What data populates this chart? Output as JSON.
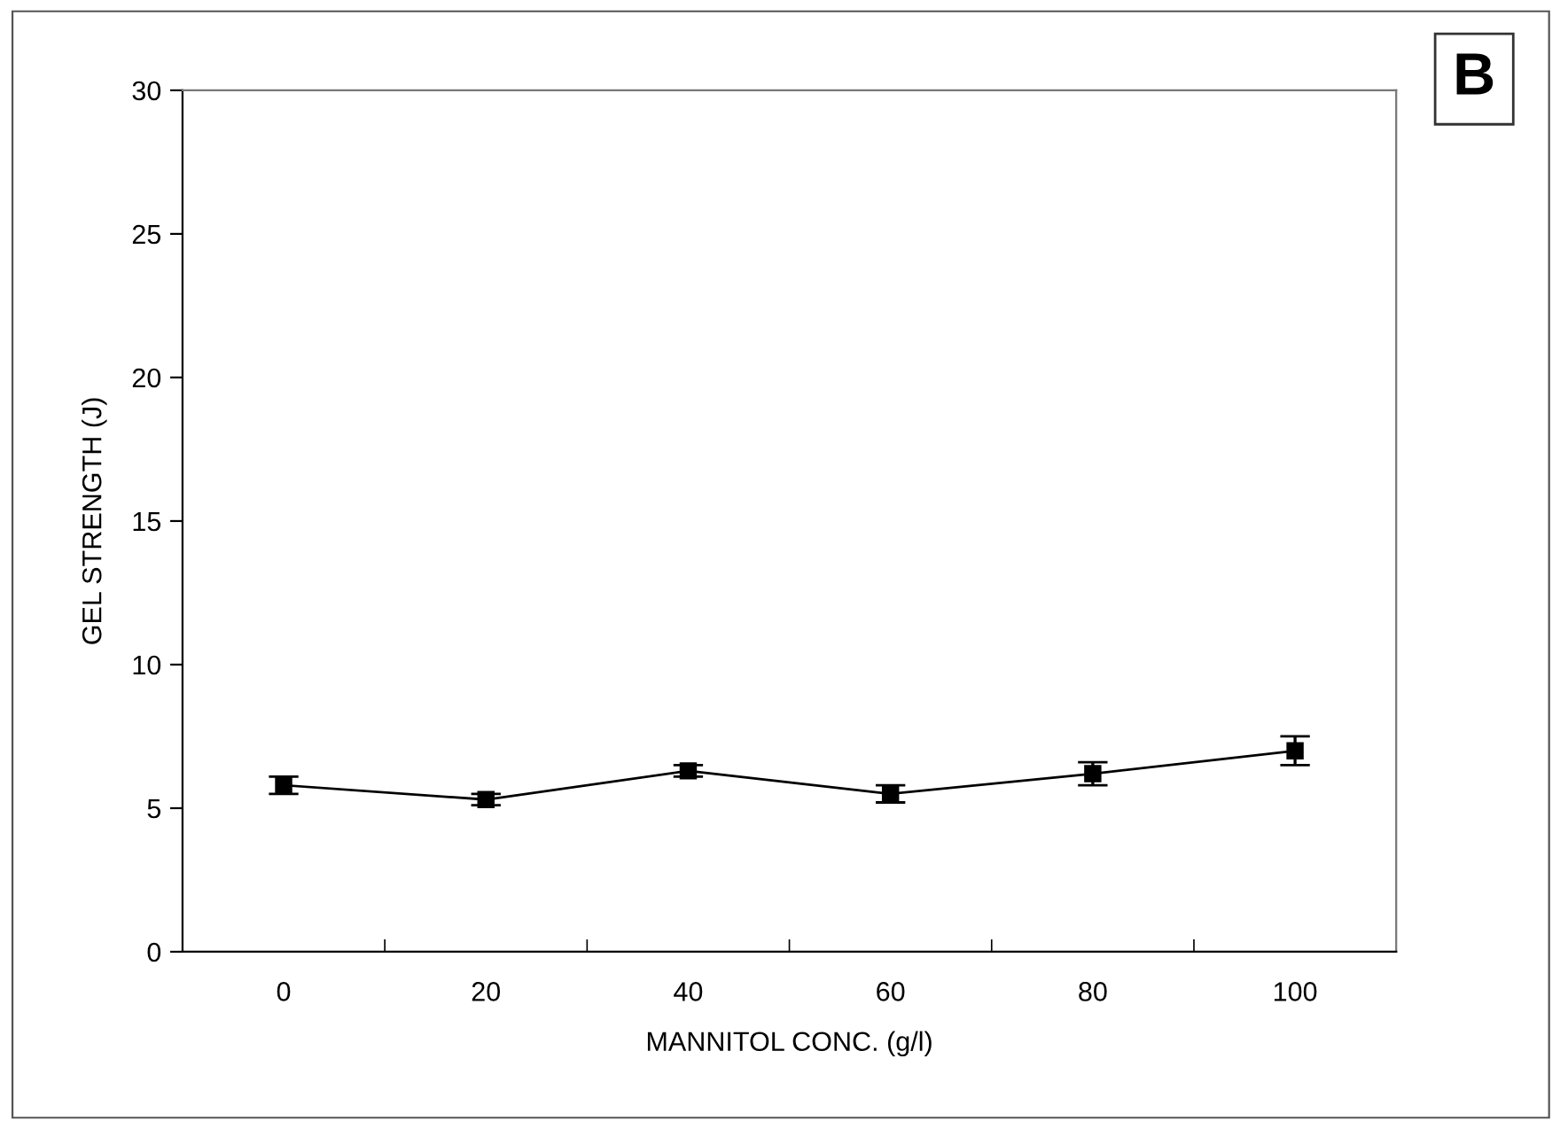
{
  "chart_data": {
    "type": "line",
    "xlabel": "MANNITOL CONC. (g/l)",
    "ylabel": "GEL STRENGTH (J)",
    "categories": [
      "0",
      "20",
      "40",
      "60",
      "80",
      "100"
    ],
    "series": [
      {
        "color": "#000000",
        "values": [
          5.8,
          5.3,
          6.3,
          5.5,
          6.2,
          7.0
        ],
        "errors": [
          0.3,
          0.2,
          0.2,
          0.3,
          0.4,
          0.5
        ]
      }
    ],
    "ylim": [
      0,
      30
    ],
    "yticks": [
      0,
      5,
      10,
      15,
      20,
      25,
      30
    ],
    "grid": false,
    "legend": false,
    "marker": "square",
    "line_style": "solid",
    "annotations": [
      "B"
    ]
  }
}
